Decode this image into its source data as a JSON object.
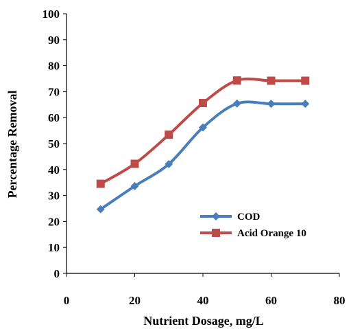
{
  "chart_data": {
    "type": "line",
    "title": "",
    "xlabel": "Nutrient Dosage, mg/L",
    "ylabel": "Percentage Removal",
    "xlim": [
      0,
      80
    ],
    "ylim": [
      0,
      100
    ],
    "xticks": [
      0,
      20,
      40,
      60,
      80
    ],
    "yticks": [
      0,
      10,
      20,
      30,
      40,
      50,
      60,
      70,
      80,
      90,
      100
    ],
    "grid": false,
    "legend_position": "lower-right",
    "series": [
      {
        "name": "COD",
        "color": "#4a7ebb",
        "marker": "diamond",
        "x": [
          10,
          20,
          30,
          40,
          50,
          60,
          70
        ],
        "y": [
          24.7,
          33.6,
          42.1,
          56.2,
          65.4,
          65.3,
          65.3
        ]
      },
      {
        "name": "Acid Orange 10",
        "color": "#be4b48",
        "marker": "square",
        "x": [
          10,
          20,
          30,
          40,
          50,
          60,
          70
        ],
        "y": [
          34.5,
          42.2,
          53.4,
          65.6,
          74.3,
          74.2,
          74.2
        ]
      }
    ]
  }
}
